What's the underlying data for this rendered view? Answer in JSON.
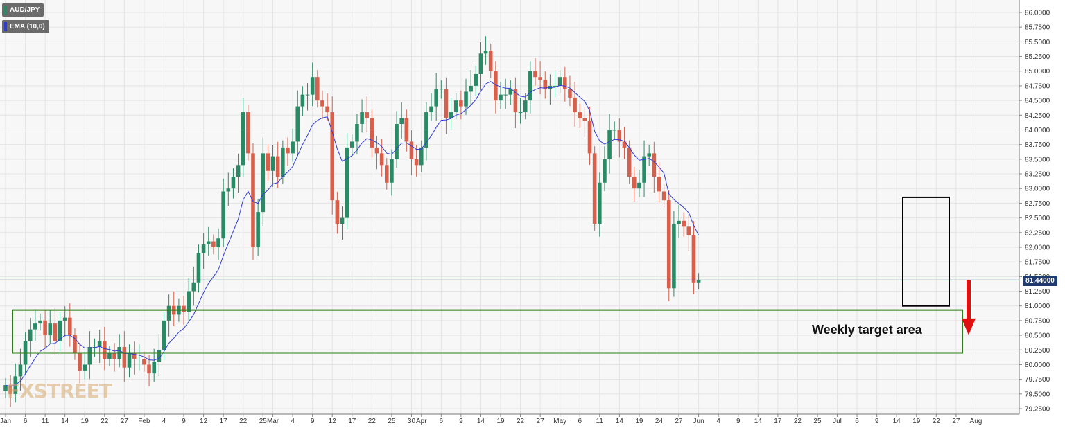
{
  "legend": {
    "price_label": "AUD/JPY",
    "ema_label": "EMA (10,0)",
    "price_color": "#2b8a66",
    "ema_color": "#2f3bd6"
  },
  "watermark": "FXSTREET",
  "annotations": {
    "target_label": "Weekly target area",
    "target_box": {
      "y_low": 80.2,
      "y_high": 80.93,
      "date_from": "Jan 4",
      "date_to": "Jul 23"
    },
    "recent_box": {
      "y_low": 81.0,
      "y_high": 82.85,
      "date_from": "Jul 12",
      "date_to": "Jul 20"
    },
    "arrow": {
      "from": 81.44,
      "to": 80.55,
      "color": "#e01010",
      "direction": "down"
    },
    "target_color": "#2e7d1a",
    "box_color": "#000000"
  },
  "price_tag": {
    "text": "81.44000",
    "value": 81.44,
    "color": "#1f3b70"
  },
  "chart_data": {
    "type": "candlestick",
    "title": "",
    "instrument": "AUD/JPY",
    "timeframe": "daily",
    "ylim": [
      79.2,
      86.1
    ],
    "grid": true,
    "up_color": "#2b8a66",
    "down_color": "#d7604c",
    "y_ticks": [
      "79.2500",
      "79.5000",
      "79.7500",
      "80.0000",
      "80.2500",
      "80.5000",
      "80.7500",
      "81.0000",
      "81.2500",
      "81.5000",
      "81.7500",
      "82.0000",
      "82.2500",
      "82.5000",
      "82.7500",
      "83.0000",
      "83.2500",
      "83.5000",
      "83.7500",
      "84.0000",
      "84.2500",
      "84.5000",
      "84.7500",
      "85.0000",
      "85.2500",
      "85.5000",
      "85.7500",
      "86.0000"
    ],
    "x_ticks": [
      {
        "label": "Jan",
        "bar": 0
      },
      {
        "label": "6",
        "bar": 4
      },
      {
        "label": "11",
        "bar": 8
      },
      {
        "label": "14",
        "bar": 12
      },
      {
        "label": "19",
        "bar": 16
      },
      {
        "label": "22",
        "bar": 20
      },
      {
        "label": "27",
        "bar": 24
      },
      {
        "label": "Feb",
        "bar": 28
      },
      {
        "label": "4",
        "bar": 32
      },
      {
        "label": "9",
        "bar": 36
      },
      {
        "label": "12",
        "bar": 40
      },
      {
        "label": "17",
        "bar": 44
      },
      {
        "label": "22",
        "bar": 48
      },
      {
        "label": "25",
        "bar": 52
      },
      {
        "label": "Mar",
        "bar": 54
      },
      {
        "label": "4",
        "bar": 58
      },
      {
        "label": "9",
        "bar": 62
      },
      {
        "label": "12",
        "bar": 66
      },
      {
        "label": "17",
        "bar": 70
      },
      {
        "label": "22",
        "bar": 74
      },
      {
        "label": "25",
        "bar": 78
      },
      {
        "label": "30",
        "bar": 82
      },
      {
        "label": "Apr",
        "bar": 84
      },
      {
        "label": "6",
        "bar": 88
      },
      {
        "label": "9",
        "bar": 92
      },
      {
        "label": "14",
        "bar": 96
      },
      {
        "label": "19",
        "bar": 100
      },
      {
        "label": "22",
        "bar": 104
      },
      {
        "label": "27",
        "bar": 108
      },
      {
        "label": "May",
        "bar": 112
      },
      {
        "label": "6",
        "bar": 116
      },
      {
        "label": "11",
        "bar": 120
      },
      {
        "label": "14",
        "bar": 124
      },
      {
        "label": "19",
        "bar": 128
      },
      {
        "label": "24",
        "bar": 132
      },
      {
        "label": "27",
        "bar": 136
      },
      {
        "label": "Jun",
        "bar": 140
      },
      {
        "label": "4",
        "bar": 144
      },
      {
        "label": "9",
        "bar": 148
      },
      {
        "label": "14",
        "bar": 152
      },
      {
        "label": "17",
        "bar": 156
      },
      {
        "label": "22",
        "bar": 160
      },
      {
        "label": "25",
        "bar": 164
      },
      {
        "label": "Jul",
        "bar": 168
      },
      {
        "label": "6",
        "bar": 172
      },
      {
        "label": "9",
        "bar": 176
      },
      {
        "label": "14",
        "bar": 180
      },
      {
        "label": "19",
        "bar": 184
      },
      {
        "label": "22",
        "bar": 188
      },
      {
        "label": "27",
        "bar": 192
      },
      {
        "label": "Aug",
        "bar": 196
      }
    ],
    "ohlc_anchors": [
      {
        "bar": 0,
        "c": 79.65
      },
      {
        "bar": 1,
        "c": 79.5
      },
      {
        "bar": 2,
        "c": 79.8
      },
      {
        "bar": 3,
        "c": 80.0
      },
      {
        "bar": 4,
        "c": 80.4
      },
      {
        "bar": 5,
        "c": 80.6
      },
      {
        "bar": 6,
        "c": 80.7
      },
      {
        "bar": 7,
        "c": 80.75
      },
      {
        "bar": 8,
        "c": 80.5
      },
      {
        "bar": 9,
        "c": 80.7
      },
      {
        "bar": 10,
        "c": 80.4
      },
      {
        "bar": 11,
        "c": 80.75
      },
      {
        "bar": 12,
        "c": 80.8
      },
      {
        "bar": 13,
        "c": 80.5
      },
      {
        "bar": 14,
        "c": 80.2
      },
      {
        "bar": 15,
        "c": 79.9
      },
      {
        "bar": 16,
        "c": 80.0
      },
      {
        "bar": 17,
        "c": 80.3
      },
      {
        "bar": 18,
        "c": 80.3
      },
      {
        "bar": 19,
        "c": 80.4
      },
      {
        "bar": 20,
        "c": 80.1
      },
      {
        "bar": 21,
        "c": 80.2
      },
      {
        "bar": 22,
        "c": 80.1
      },
      {
        "bar": 23,
        "c": 80.3
      },
      {
        "bar": 24,
        "c": 79.95
      },
      {
        "bar": 25,
        "c": 80.2
      },
      {
        "bar": 26,
        "c": 80.1
      },
      {
        "bar": 27,
        "c": 80.1
      },
      {
        "bar": 28,
        "c": 80.0
      },
      {
        "bar": 29,
        "c": 79.85
      },
      {
        "bar": 30,
        "c": 80.05
      },
      {
        "bar": 31,
        "c": 80.25
      },
      {
        "bar": 32,
        "c": 80.75
      },
      {
        "bar": 33,
        "c": 81.0
      },
      {
        "bar": 34,
        "c": 80.85
      },
      {
        "bar": 35,
        "c": 81.0
      },
      {
        "bar": 36,
        "c": 80.9
      },
      {
        "bar": 37,
        "c": 81.25
      },
      {
        "bar": 38,
        "c": 81.4
      },
      {
        "bar": 39,
        "c": 81.9
      },
      {
        "bar": 40,
        "c": 82.05
      },
      {
        "bar": 41,
        "c": 82.1
      },
      {
        "bar": 42,
        "c": 82.0
      },
      {
        "bar": 43,
        "c": 82.15
      },
      {
        "bar": 44,
        "c": 82.95
      },
      {
        "bar": 45,
        "c": 83.0
      },
      {
        "bar": 46,
        "c": 83.2
      },
      {
        "bar": 47,
        "c": 83.4
      },
      {
        "bar": 48,
        "c": 84.3
      },
      {
        "bar": 49,
        "c": 83.6
      },
      {
        "bar": 50,
        "c": 82.0
      },
      {
        "bar": 51,
        "c": 82.6
      },
      {
        "bar": 52,
        "c": 83.6
      },
      {
        "bar": 53,
        "c": 83.3
      },
      {
        "bar": 54,
        "c": 83.55
      },
      {
        "bar": 55,
        "c": 83.2
      },
      {
        "bar": 56,
        "c": 83.7
      },
      {
        "bar": 57,
        "c": 83.6
      },
      {
        "bar": 58,
        "c": 83.8
      },
      {
        "bar": 59,
        "c": 84.4
      },
      {
        "bar": 60,
        "c": 84.6
      },
      {
        "bar": 61,
        "c": 84.6
      },
      {
        "bar": 62,
        "c": 84.9
      },
      {
        "bar": 63,
        "c": 84.5
      },
      {
        "bar": 64,
        "c": 84.4
      },
      {
        "bar": 65,
        "c": 84.3
      },
      {
        "bar": 66,
        "c": 82.8
      },
      {
        "bar": 67,
        "c": 82.4
      },
      {
        "bar": 68,
        "c": 82.5
      },
      {
        "bar": 69,
        "c": 83.7
      },
      {
        "bar": 70,
        "c": 83.8
      },
      {
        "bar": 71,
        "c": 84.1
      },
      {
        "bar": 72,
        "c": 84.3
      },
      {
        "bar": 73,
        "c": 84.2
      },
      {
        "bar": 74,
        "c": 83.7
      },
      {
        "bar": 75,
        "c": 83.6
      },
      {
        "bar": 76,
        "c": 83.4
      },
      {
        "bar": 77,
        "c": 83.1
      },
      {
        "bar": 78,
        "c": 83.5
      },
      {
        "bar": 79,
        "c": 84.1
      },
      {
        "bar": 80,
        "c": 84.2
      },
      {
        "bar": 81,
        "c": 83.8
      },
      {
        "bar": 82,
        "c": 83.5
      },
      {
        "bar": 83,
        "c": 83.4
      },
      {
        "bar": 84,
        "c": 83.7
      },
      {
        "bar": 85,
        "c": 84.3
      },
      {
        "bar": 86,
        "c": 84.4
      },
      {
        "bar": 87,
        "c": 84.7
      },
      {
        "bar": 88,
        "c": 84.7
      },
      {
        "bar": 89,
        "c": 84.2
      },
      {
        "bar": 90,
        "c": 84.3
      },
      {
        "bar": 91,
        "c": 84.5
      },
      {
        "bar": 92,
        "c": 84.4
      },
      {
        "bar": 93,
        "c": 84.65
      },
      {
        "bar": 94,
        "c": 84.75
      },
      {
        "bar": 95,
        "c": 84.95
      },
      {
        "bar": 96,
        "c": 85.3
      },
      {
        "bar": 97,
        "c": 85.35
      },
      {
        "bar": 98,
        "c": 85.0
      },
      {
        "bar": 99,
        "c": 84.5
      },
      {
        "bar": 100,
        "c": 84.6
      },
      {
        "bar": 101,
        "c": 84.6
      },
      {
        "bar": 102,
        "c": 84.7
      },
      {
        "bar": 103,
        "c": 84.3
      },
      {
        "bar": 104,
        "c": 84.3
      },
      {
        "bar": 105,
        "c": 84.5
      },
      {
        "bar": 106,
        "c": 85.0
      },
      {
        "bar": 107,
        "c": 84.9
      },
      {
        "bar": 108,
        "c": 84.85
      },
      {
        "bar": 109,
        "c": 84.7
      },
      {
        "bar": 110,
        "c": 84.75
      },
      {
        "bar": 111,
        "c": 84.75
      },
      {
        "bar": 112,
        "c": 84.9
      },
      {
        "bar": 113,
        "c": 84.7
      },
      {
        "bar": 114,
        "c": 84.55
      },
      {
        "bar": 115,
        "c": 84.3
      },
      {
        "bar": 116,
        "c": 84.2
      },
      {
        "bar": 117,
        "c": 84.15
      },
      {
        "bar": 118,
        "c": 83.6
      },
      {
        "bar": 119,
        "c": 82.4
      },
      {
        "bar": 120,
        "c": 83.1
      },
      {
        "bar": 121,
        "c": 83.5
      },
      {
        "bar": 122,
        "c": 84.0
      },
      {
        "bar": 123,
        "c": 84.0
      },
      {
        "bar": 124,
        "c": 83.8
      },
      {
        "bar": 125,
        "c": 83.7
      },
      {
        "bar": 126,
        "c": 83.2
      },
      {
        "bar": 127,
        "c": 83.0
      },
      {
        "bar": 128,
        "c": 83.1
      },
      {
        "bar": 129,
        "c": 83.55
      },
      {
        "bar": 130,
        "c": 83.6
      },
      {
        "bar": 131,
        "c": 83.2
      },
      {
        "bar": 132,
        "c": 82.95
      },
      {
        "bar": 133,
        "c": 82.8
      },
      {
        "bar": 134,
        "c": 81.3
      },
      {
        "bar": 135,
        "c": 82.4
      },
      {
        "bar": 136,
        "c": 82.45
      },
      {
        "bar": 137,
        "c": 82.35
      },
      {
        "bar": 138,
        "c": 82.2
      },
      {
        "bar": 139,
        "c": 81.4
      },
      {
        "bar": 140,
        "c": 81.44
      }
    ]
  }
}
